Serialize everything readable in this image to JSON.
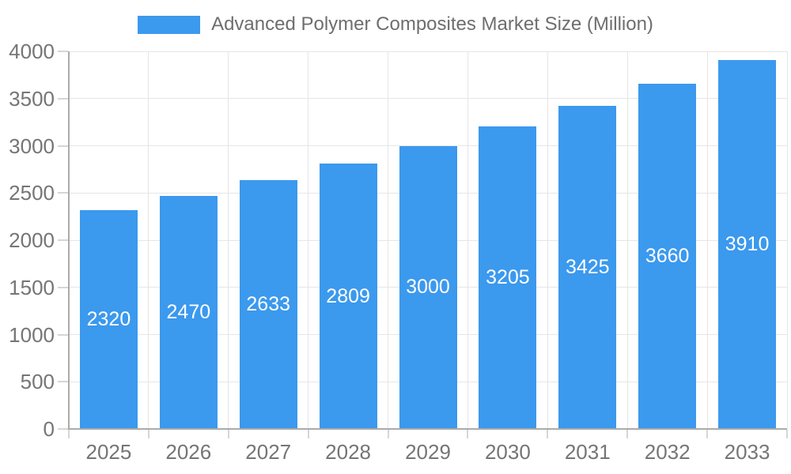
{
  "chart_data": {
    "type": "bar",
    "title": "Advanced Polymer Composites Market Size (Million)",
    "legend_position": "top",
    "categories": [
      "2025",
      "2026",
      "2027",
      "2028",
      "2029",
      "2030",
      "2031",
      "2032",
      "2033"
    ],
    "series": [
      {
        "name": "Advanced Polymer Composites Market Size (Million)",
        "values": [
          2320,
          2470,
          2633,
          2809,
          3000,
          3205,
          3425,
          3660,
          3910
        ]
      }
    ],
    "bar_value_labels": [
      "2320",
      "2470",
      "2633",
      "2809",
      "3000",
      "3205",
      "3425",
      "3660",
      "3910"
    ],
    "xlabel": "",
    "ylabel": "",
    "ylim": [
      0,
      4000
    ],
    "yticks": [
      0,
      500,
      1000,
      1500,
      2000,
      2500,
      3000,
      3500,
      4000
    ],
    "grid": true,
    "colors": {
      "bar": "#3B99EE",
      "bar_label": "#FFFFFF",
      "gridline": "#E6E6E6",
      "axis_line": "#ABABAB",
      "tick_line": "#D6D6D6",
      "axis_text": "#757575",
      "legend_text": "#6E6E6E",
      "background": "#FFFFFF"
    }
  }
}
